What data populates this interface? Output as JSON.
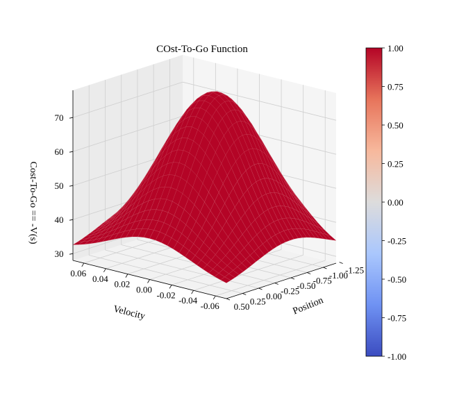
{
  "chart_data": {
    "type": "surface3d",
    "title": "COst-To-Go Function",
    "xlabel": "Velocity",
    "ylabel": "Position",
    "zlabel": "Cost-To-Go == -V(s)",
    "x_ticks": [
      "-0.06",
      "-0.04",
      "-0.02",
      "0.00",
      "0.02",
      "0.04",
      "0.06"
    ],
    "y_ticks": [
      "0.50",
      "0.25",
      "0.00",
      "-0.25",
      "-0.50",
      "-0.75",
      "-1.00",
      "-1.25"
    ],
    "z_ticks": [
      "30",
      "40",
      "50",
      "60",
      "70"
    ],
    "xlim": [
      -0.07,
      0.07
    ],
    "ylim": [
      -1.2,
      0.5
    ],
    "zlim": [
      28,
      78
    ],
    "surface": {
      "peak": {
        "velocity": 0.0,
        "position": -0.5,
        "cost": 77
      },
      "corner_min": {
        "velocity": -0.07,
        "position": 0.5,
        "cost": 31
      },
      "color": "#b40426"
    },
    "colorbar": {
      "ticks": [
        "1.00",
        "0.75",
        "0.50",
        "0.25",
        "0.00",
        "-0.25",
        "-0.50",
        "-0.75",
        "-1.00"
      ],
      "range": [
        -1.0,
        1.0
      ],
      "cmap_stops": [
        "#3b4cc0",
        "#6f92f3",
        "#aac7fd",
        "#dddcdc",
        "#f7b89c",
        "#e7745b",
        "#b40426"
      ]
    },
    "grid": true
  }
}
